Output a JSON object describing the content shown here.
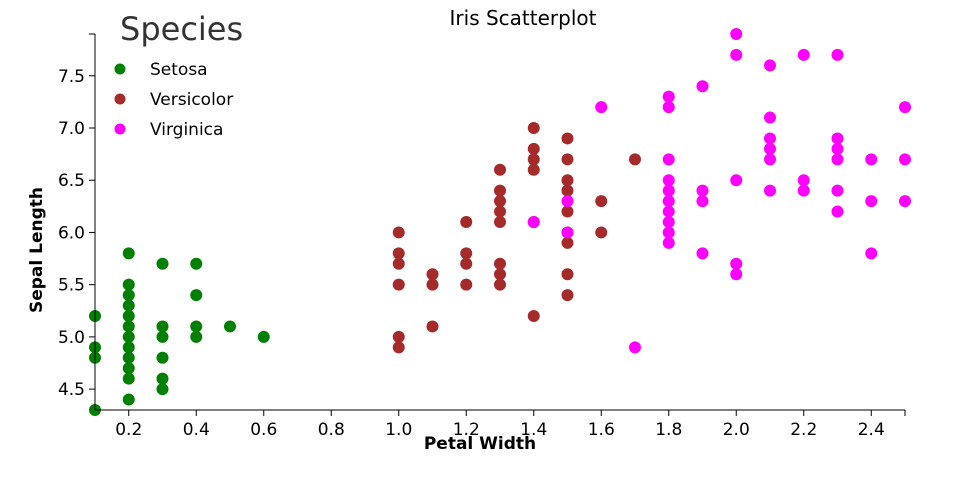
{
  "chart_data": {
    "type": "scatter",
    "title": "Iris Scatterplot",
    "xlabel": "Petal Width",
    "ylabel": "Sepal Length",
    "xlim": [
      0.1,
      2.5
    ],
    "ylim": [
      4.3,
      7.9
    ],
    "x_ticks": [
      "0.2",
      "0.4",
      "0.6",
      "0.8",
      "1.0",
      "1.2",
      "1.4",
      "1.6",
      "1.8",
      "2.0",
      "2.2",
      "2.4"
    ],
    "y_ticks": [
      "4.5",
      "5.0",
      "5.5",
      "6.0",
      "6.5",
      "7.0",
      "7.5"
    ],
    "grid": false,
    "legend": {
      "title": "Species",
      "placement": "top-left"
    },
    "series": [
      {
        "name": "Setosa",
        "color": "#008000",
        "points": [
          [
            0.1,
            5.2
          ],
          [
            0.1,
            4.9
          ],
          [
            0.1,
            4.8
          ],
          [
            0.1,
            4.3
          ],
          [
            0.2,
            5.8
          ],
          [
            0.2,
            5.5
          ],
          [
            0.2,
            5.4
          ],
          [
            0.2,
            5.3
          ],
          [
            0.2,
            5.2
          ],
          [
            0.2,
            5.1
          ],
          [
            0.2,
            5.0
          ],
          [
            0.2,
            4.9
          ],
          [
            0.2,
            4.8
          ],
          [
            0.2,
            4.7
          ],
          [
            0.2,
            4.6
          ],
          [
            0.2,
            4.4
          ],
          [
            0.3,
            5.7
          ],
          [
            0.3,
            5.1
          ],
          [
            0.3,
            5.0
          ],
          [
            0.3,
            4.8
          ],
          [
            0.3,
            4.6
          ],
          [
            0.3,
            4.5
          ],
          [
            0.4,
            5.7
          ],
          [
            0.4,
            5.4
          ],
          [
            0.4,
            5.1
          ],
          [
            0.4,
            5.0
          ],
          [
            0.5,
            5.1
          ],
          [
            0.6,
            5.0
          ]
        ]
      },
      {
        "name": "Versicolor",
        "color": "#a52a2a",
        "points": [
          [
            1.0,
            6.0
          ],
          [
            1.0,
            5.8
          ],
          [
            1.0,
            5.7
          ],
          [
            1.0,
            5.5
          ],
          [
            1.0,
            5.0
          ],
          [
            1.0,
            4.9
          ],
          [
            1.1,
            5.6
          ],
          [
            1.1,
            5.5
          ],
          [
            1.1,
            5.1
          ],
          [
            1.2,
            6.1
          ],
          [
            1.2,
            5.8
          ],
          [
            1.2,
            5.7
          ],
          [
            1.2,
            5.5
          ],
          [
            1.3,
            6.6
          ],
          [
            1.3,
            6.4
          ],
          [
            1.3,
            6.3
          ],
          [
            1.3,
            6.2
          ],
          [
            1.3,
            6.1
          ],
          [
            1.3,
            5.7
          ],
          [
            1.3,
            5.6
          ],
          [
            1.3,
            5.5
          ],
          [
            1.4,
            7.0
          ],
          [
            1.4,
            6.8
          ],
          [
            1.4,
            6.7
          ],
          [
            1.4,
            6.6
          ],
          [
            1.4,
            6.1
          ],
          [
            1.4,
            5.2
          ],
          [
            1.5,
            6.9
          ],
          [
            1.5,
            6.7
          ],
          [
            1.5,
            6.5
          ],
          [
            1.5,
            6.4
          ],
          [
            1.5,
            6.2
          ],
          [
            1.5,
            6.0
          ],
          [
            1.5,
            5.9
          ],
          [
            1.5,
            5.6
          ],
          [
            1.5,
            5.4
          ],
          [
            1.6,
            6.3
          ],
          [
            1.6,
            6.0
          ],
          [
            1.7,
            6.7
          ]
        ]
      },
      {
        "name": "Virginica",
        "color": "#ff00ff",
        "points": [
          [
            1.4,
            6.1
          ],
          [
            1.5,
            6.3
          ],
          [
            1.5,
            6.0
          ],
          [
            1.6,
            7.2
          ],
          [
            1.7,
            4.9
          ],
          [
            1.8,
            7.3
          ],
          [
            1.8,
            7.2
          ],
          [
            1.8,
            6.7
          ],
          [
            1.8,
            6.5
          ],
          [
            1.8,
            6.4
          ],
          [
            1.8,
            6.3
          ],
          [
            1.8,
            6.2
          ],
          [
            1.8,
            6.1
          ],
          [
            1.8,
            6.0
          ],
          [
            1.8,
            5.9
          ],
          [
            1.9,
            7.4
          ],
          [
            1.9,
            6.4
          ],
          [
            1.9,
            6.3
          ],
          [
            1.9,
            5.8
          ],
          [
            2.0,
            7.9
          ],
          [
            2.0,
            7.7
          ],
          [
            2.0,
            6.5
          ],
          [
            2.0,
            5.7
          ],
          [
            2.0,
            5.6
          ],
          [
            2.1,
            7.6
          ],
          [
            2.1,
            7.1
          ],
          [
            2.1,
            6.9
          ],
          [
            2.1,
            6.8
          ],
          [
            2.1,
            6.7
          ],
          [
            2.1,
            6.4
          ],
          [
            2.2,
            7.7
          ],
          [
            2.2,
            6.5
          ],
          [
            2.2,
            6.4
          ],
          [
            2.3,
            7.7
          ],
          [
            2.3,
            6.9
          ],
          [
            2.3,
            6.8
          ],
          [
            2.3,
            6.7
          ],
          [
            2.3,
            6.4
          ],
          [
            2.3,
            6.2
          ],
          [
            2.4,
            6.7
          ],
          [
            2.4,
            6.3
          ],
          [
            2.4,
            5.8
          ],
          [
            2.5,
            7.2
          ],
          [
            2.5,
            6.7
          ],
          [
            2.5,
            6.3
          ]
        ]
      }
    ]
  }
}
